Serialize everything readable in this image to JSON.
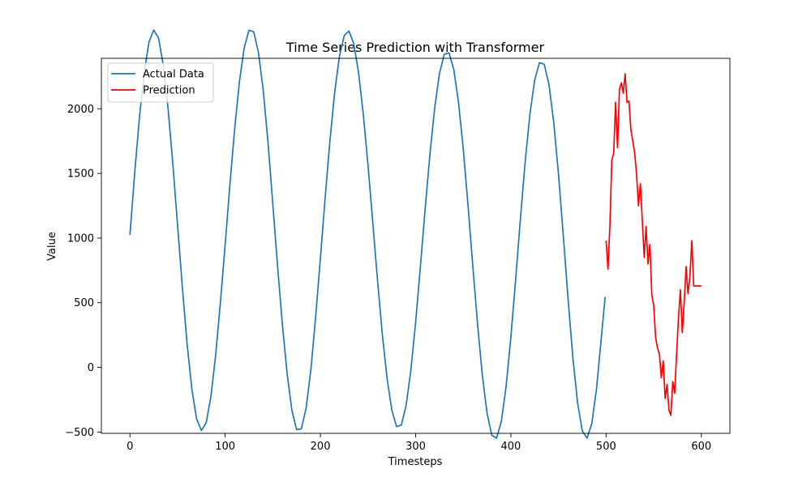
{
  "chart_data": {
    "type": "line",
    "title": "Time Series Prediction with Transformer",
    "xlabel": "Timesteps",
    "ylabel": "Value",
    "xlim": [
      -30,
      630
    ],
    "ylim": [
      -510,
      2390
    ],
    "xticks": [
      0,
      100,
      200,
      300,
      400,
      500,
      600
    ],
    "yticks": [
      -500,
      0,
      500,
      1000,
      1500,
      2000
    ],
    "xtick_labels": [
      "0",
      "100",
      "200",
      "300",
      "400",
      "500",
      "600"
    ],
    "ytick_labels": [
      "−500",
      "0",
      "500",
      "1000",
      "1500",
      "2000"
    ],
    "grid": false,
    "legend_position": "upper-left",
    "series": [
      {
        "name": "Actual Data",
        "color": "#1f77b4",
        "x": [
          0,
          5,
          10,
          15,
          20,
          25,
          30,
          35,
          40,
          45,
          50,
          55,
          60,
          65,
          70,
          75,
          80,
          85,
          90,
          95,
          100,
          105,
          110,
          115,
          120,
          125,
          130,
          135,
          140,
          145,
          150,
          155,
          160,
          165,
          170,
          175,
          180,
          185,
          190,
          195,
          200,
          205,
          210,
          215,
          220,
          225,
          230,
          235,
          240,
          245,
          250,
          255,
          260,
          265,
          270,
          275,
          280,
          285,
          290,
          295,
          300,
          305,
          310,
          315,
          320,
          325,
          330,
          335,
          340,
          345,
          350,
          355,
          360,
          365,
          370,
          375,
          380,
          385,
          390,
          395,
          400,
          405,
          410,
          415,
          420,
          425,
          430,
          435,
          440,
          445,
          450,
          455,
          460,
          465,
          470,
          475,
          480,
          485,
          490,
          495,
          499
        ],
        "y": [
          1025,
          1504,
          1936,
          2284,
          2517,
          2609,
          2548,
          2339,
          2004,
          1577,
          1100,
          622,
          184,
          -167,
          -398,
          -488,
          -430,
          -226,
          96,
          502,
          952,
          1414,
          1848,
          2212,
          2473,
          2608,
          2595,
          2433,
          2140,
          1738,
          1266,
          785,
          336,
          -45,
          -330,
          -481,
          -475,
          -315,
          -18,
          391,
          845,
          1314,
          1753,
          2127,
          2407,
          2566,
          2601,
          2504,
          2283,
          1960,
          1563,
          1118,
          672,
          257,
          -86,
          -331,
          -458,
          -446,
          -294,
          -21,
          349,
          779,
          1225,
          1647,
          2005,
          2272,
          2421,
          2433,
          2306,
          2051,
          1690,
          1254,
          787,
          336,
          -58,
          -355,
          -525,
          -547,
          -417,
          -147,
          232,
          680,
          1147,
          1588,
          1958,
          2222,
          2356,
          2345,
          2187,
          1896,
          1495,
          1024,
          536,
          84,
          -271,
          -491,
          -548,
          -434,
          -161,
          232,
          545
        ]
      },
      {
        "name": "Prediction",
        "color": "#ff0000",
        "x": [
          500,
          502,
          504,
          506,
          508,
          510,
          512,
          514,
          516,
          518,
          520,
          522,
          524,
          526,
          528,
          530,
          532,
          534,
          536,
          538,
          540,
          542,
          544,
          546,
          548,
          550,
          552,
          554,
          556,
          558,
          560,
          562,
          564,
          566,
          568,
          570,
          572,
          574,
          576,
          578,
          580,
          582,
          584,
          586,
          588,
          590,
          592,
          594,
          596,
          598,
          600
        ],
        "y": [
          980,
          760,
          1100,
          1600,
          1660,
          2050,
          1700,
          2150,
          2200,
          2120,
          2270,
          2050,
          2060,
          1840,
          1750,
          1660,
          1490,
          1250,
          1420,
          1140,
          850,
          1090,
          800,
          950,
          560,
          480,
          230,
          150,
          100,
          -80,
          50,
          -240,
          -130,
          -330,
          -370,
          -110,
          -200,
          100,
          380,
          600,
          270,
          500,
          780,
          570,
          700,
          980,
          630,
          630,
          630,
          630,
          630
        ]
      }
    ]
  }
}
